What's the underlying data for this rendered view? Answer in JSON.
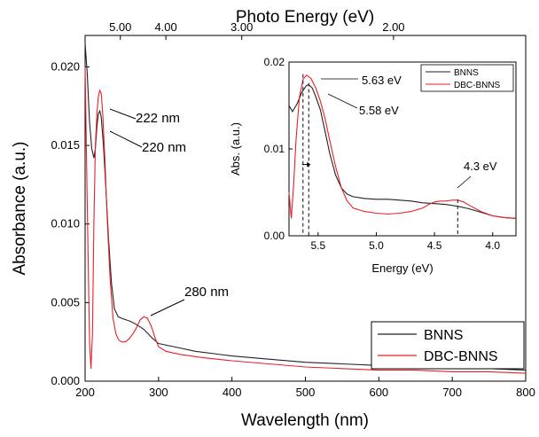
{
  "chart_data": {
    "type": "line",
    "main": {
      "xlabel": "Wavelength (nm)",
      "ylabel": "Absorbance (a.u.)",
      "top_xlabel": "Photo Energy (eV)",
      "xlim": [
        200,
        800
      ],
      "ylim": [
        0.0,
        0.022
      ],
      "x_ticks": [
        "200",
        "300",
        "400",
        "500",
        "600",
        "700",
        "800"
      ],
      "y_ticks": [
        "0.000",
        "0.005",
        "0.010",
        "0.015",
        "0.020"
      ],
      "top_ticks": [
        "5.00",
        "4.00",
        "3.00",
        "2.00"
      ],
      "top_tick_values": [
        5.0,
        4.0,
        3.0,
        2.0
      ],
      "annotations": [
        {
          "text": "222 nm",
          "x": 222,
          "y": 0.0185
        },
        {
          "text": "220 nm",
          "x": 220,
          "y": 0.0172
        },
        {
          "text": "280 nm",
          "x": 280,
          "y": 0.0041
        }
      ],
      "legend": {
        "position": "bottom-right",
        "entries": [
          "BNNS",
          "DBC-BNNS"
        ]
      },
      "series": [
        {
          "name": "BNNS",
          "color": "#222222",
          "x": [
            200,
            203,
            206,
            209,
            212,
            214,
            216,
            218,
            220,
            222,
            225,
            228,
            232,
            236,
            240,
            245,
            250,
            256,
            262,
            270,
            280,
            290,
            300,
            320,
            350,
            400,
            450,
            500,
            550,
            600,
            650,
            700,
            750,
            800
          ],
          "y": [
            0.0215,
            0.0195,
            0.0165,
            0.0148,
            0.0142,
            0.0148,
            0.0162,
            0.017,
            0.0172,
            0.0168,
            0.015,
            0.0125,
            0.009,
            0.0062,
            0.0046,
            0.0041,
            0.004,
            0.0039,
            0.0038,
            0.0036,
            0.0033,
            0.0028,
            0.0024,
            0.0022,
            0.0019,
            0.0016,
            0.0014,
            0.0012,
            0.0011,
            0.001,
            0.0009,
            0.0008,
            0.0008,
            0.0007
          ]
        },
        {
          "name": "DBC-BNNS",
          "color": "#e8202a",
          "x": [
            200,
            203,
            206,
            208,
            210,
            212,
            214,
            216,
            218,
            220,
            222,
            224,
            227,
            230,
            234,
            238,
            242,
            246,
            250,
            255,
            260,
            265,
            270,
            275,
            280,
            285,
            290,
            295,
            300,
            310,
            330,
            360,
            400,
            450,
            500,
            550,
            600,
            650,
            700,
            750,
            800
          ],
          "y": [
            0.02,
            0.011,
            0.0025,
            0.0008,
            0.003,
            0.01,
            0.015,
            0.017,
            0.0181,
            0.0185,
            0.0183,
            0.017,
            0.014,
            0.0105,
            0.0065,
            0.004,
            0.003,
            0.0026,
            0.0025,
            0.0025,
            0.0027,
            0.003,
            0.0034,
            0.0039,
            0.0041,
            0.004,
            0.0035,
            0.0028,
            0.0022,
            0.0019,
            0.0017,
            0.0015,
            0.0013,
            0.0011,
            0.0009,
            0.0008,
            0.0007,
            0.0007,
            0.0006,
            0.0006,
            0.0005
          ]
        }
      ]
    },
    "inset": {
      "xlabel": "Energy (eV)",
      "ylabel": "Abs. (a.u.)",
      "xlim": [
        5.75,
        3.8
      ],
      "ylim": [
        0.0,
        0.02
      ],
      "x_ticks": [
        "5.5",
        "5.0",
        "4.5",
        "4.0"
      ],
      "x_tick_values": [
        5.5,
        5.0,
        4.5,
        4.0
      ],
      "y_ticks": [
        "0.00",
        "0.01",
        "0.02"
      ],
      "y_tick_values": [
        0.0,
        0.01,
        0.02
      ],
      "annotations": [
        {
          "text": "5.63 eV",
          "x": 5.63
        },
        {
          "text": "5.58 eV",
          "x": 5.58
        },
        {
          "text": "4.3 eV",
          "x": 4.3
        }
      ],
      "legend": {
        "position": "top-right",
        "entries": [
          "BNNS",
          "DBC-BNNS"
        ]
      },
      "series": [
        {
          "name": "BNNS",
          "color": "#222222",
          "x": [
            5.75,
            5.72,
            5.68,
            5.64,
            5.6,
            5.58,
            5.55,
            5.52,
            5.48,
            5.44,
            5.4,
            5.35,
            5.3,
            5.25,
            5.2,
            5.1,
            5.0,
            4.9,
            4.8,
            4.7,
            4.6,
            4.5,
            4.4,
            4.3,
            4.2,
            4.1,
            4.0,
            3.9,
            3.8
          ],
          "y": [
            0.015,
            0.0143,
            0.0152,
            0.0165,
            0.0173,
            0.0174,
            0.017,
            0.016,
            0.0145,
            0.012,
            0.0095,
            0.007,
            0.0055,
            0.0048,
            0.0045,
            0.0043,
            0.0042,
            0.0042,
            0.0041,
            0.004,
            0.0038,
            0.0037,
            0.0036,
            0.0034,
            0.0031,
            0.0027,
            0.0023,
            0.0021,
            0.002
          ]
        },
        {
          "name": "DBC-BNNS",
          "color": "#e8202a",
          "x": [
            5.75,
            5.73,
            5.71,
            5.69,
            5.66,
            5.63,
            5.6,
            5.56,
            5.52,
            5.48,
            5.44,
            5.4,
            5.35,
            5.3,
            5.25,
            5.2,
            5.1,
            5.0,
            4.9,
            4.8,
            4.7,
            4.6,
            4.55,
            4.5,
            4.45,
            4.4,
            4.35,
            4.3,
            4.25,
            4.2,
            4.1,
            4.0,
            3.9,
            3.8
          ],
          "y": [
            0.005,
            0.002,
            0.006,
            0.011,
            0.016,
            0.018,
            0.0185,
            0.0181,
            0.017,
            0.0155,
            0.0135,
            0.011,
            0.008,
            0.0055,
            0.004,
            0.0032,
            0.0028,
            0.0026,
            0.0025,
            0.0026,
            0.0028,
            0.0032,
            0.0036,
            0.0039,
            0.004,
            0.004,
            0.0041,
            0.0041,
            0.0039,
            0.0035,
            0.0028,
            0.0023,
            0.0021,
            0.002
          ]
        }
      ]
    }
  }
}
